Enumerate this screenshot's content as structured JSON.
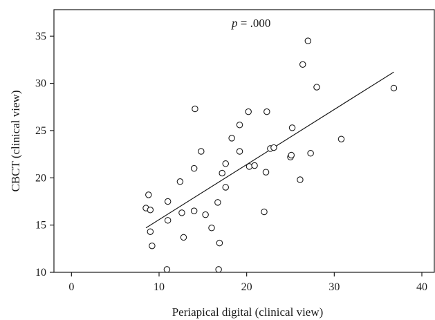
{
  "chart_data": {
    "type": "scatter",
    "title": "",
    "xlabel": "Periapical digital (clinical view)",
    "ylabel": "CBCT (clinical view)",
    "xlim": [
      -2,
      41.5
    ],
    "ylim": [
      10,
      37.8
    ],
    "xticks": [
      "0",
      "10",
      "20",
      "30",
      "40"
    ],
    "yticks": [
      "10",
      "15",
      "20",
      "25",
      "30",
      "35"
    ],
    "annotation": {
      "italic": "p",
      "text": " = .000"
    },
    "grid": false,
    "legend": "none",
    "fit_line": {
      "x": [
        8.5,
        36.8
      ],
      "y": [
        14.7,
        31.2
      ]
    },
    "points": [
      {
        "x": 8.5,
        "y": 16.8
      },
      {
        "x": 8.8,
        "y": 18.2
      },
      {
        "x": 9.0,
        "y": 16.6
      },
      {
        "x": 9.0,
        "y": 14.3
      },
      {
        "x": 9.2,
        "y": 12.8
      },
      {
        "x": 10.9,
        "y": 10.3
      },
      {
        "x": 11.0,
        "y": 17.5
      },
      {
        "x": 11.0,
        "y": 15.5
      },
      {
        "x": 12.4,
        "y": 19.6
      },
      {
        "x": 12.6,
        "y": 16.3
      },
      {
        "x": 12.8,
        "y": 13.7
      },
      {
        "x": 14.0,
        "y": 16.5
      },
      {
        "x": 14.0,
        "y": 21.0
      },
      {
        "x": 14.1,
        "y": 27.3
      },
      {
        "x": 14.8,
        "y": 22.8
      },
      {
        "x": 15.3,
        "y": 16.1
      },
      {
        "x": 16.0,
        "y": 14.7
      },
      {
        "x": 16.7,
        "y": 17.4
      },
      {
        "x": 16.8,
        "y": 10.3
      },
      {
        "x": 16.9,
        "y": 13.1
      },
      {
        "x": 17.2,
        "y": 20.5
      },
      {
        "x": 17.6,
        "y": 21.5
      },
      {
        "x": 17.6,
        "y": 19.0
      },
      {
        "x": 18.3,
        "y": 24.2
      },
      {
        "x": 19.2,
        "y": 25.6
      },
      {
        "x": 19.2,
        "y": 22.8
      },
      {
        "x": 20.2,
        "y": 27.0
      },
      {
        "x": 20.3,
        "y": 21.2
      },
      {
        "x": 20.9,
        "y": 21.3
      },
      {
        "x": 22.0,
        "y": 16.4
      },
      {
        "x": 22.2,
        "y": 20.6
      },
      {
        "x": 22.3,
        "y": 27.0
      },
      {
        "x": 22.7,
        "y": 23.1
      },
      {
        "x": 23.1,
        "y": 23.2
      },
      {
        "x": 25.0,
        "y": 22.2
      },
      {
        "x": 25.1,
        "y": 22.4
      },
      {
        "x": 25.2,
        "y": 25.3
      },
      {
        "x": 26.1,
        "y": 19.8
      },
      {
        "x": 26.4,
        "y": 32.0
      },
      {
        "x": 27.0,
        "y": 34.5
      },
      {
        "x": 27.3,
        "y": 22.6
      },
      {
        "x": 28.0,
        "y": 29.6
      },
      {
        "x": 30.8,
        "y": 24.1
      },
      {
        "x": 36.8,
        "y": 29.5
      }
    ]
  }
}
